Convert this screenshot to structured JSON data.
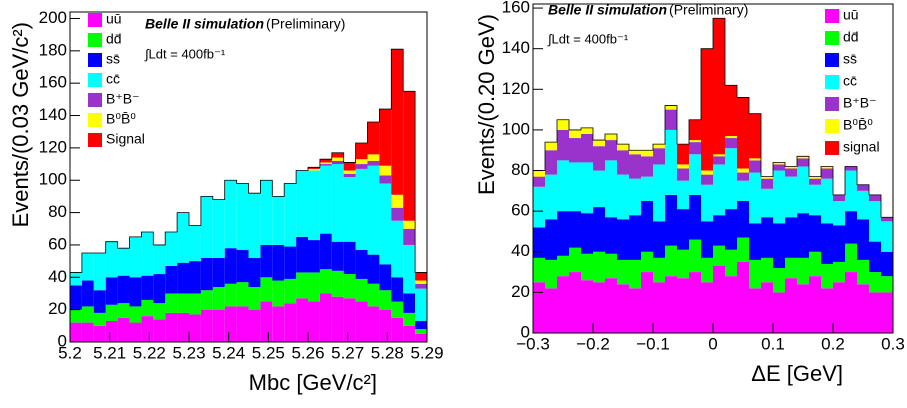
{
  "chart_data": [
    {
      "type": "stacked_histogram",
      "ylabel": "Events/(0.03 GeV/c²)",
      "xlabel": "Mbc [GeV/c²]",
      "annotations": [
        "Belle II simulation",
        "(Preliminary)",
        "∫Ldt = 400fb⁻¹"
      ],
      "bins": [
        5.2,
        5.203,
        5.206,
        5.209,
        5.212,
        5.215,
        5.218,
        5.221,
        5.224,
        5.227,
        5.23,
        5.233,
        5.236,
        5.239,
        5.242,
        5.245,
        5.248,
        5.251,
        5.254,
        5.257,
        5.26,
        5.263,
        5.266,
        5.269,
        5.272,
        5.275,
        5.278,
        5.281,
        5.284,
        5.287,
        5.29
      ],
      "xlim": [
        5.2,
        5.29
      ],
      "xticks": [
        5.2,
        5.21,
        5.22,
        5.23,
        5.24,
        5.25,
        5.26,
        5.27,
        5.28,
        5.29
      ],
      "ylim": [
        0,
        204
      ],
      "yticks": [
        0,
        20,
        40,
        60,
        80,
        100,
        120,
        140,
        160,
        180,
        200
      ],
      "series": [
        {
          "name": "uū",
          "color": "#ff00ff",
          "values": [
            12,
            12,
            10,
            13,
            15,
            12,
            16,
            14,
            18,
            18,
            17,
            20,
            20,
            22,
            22,
            20,
            25,
            22,
            24,
            27,
            25,
            30,
            28,
            27,
            25,
            22,
            20,
            15,
            10,
            5
          ]
        },
        {
          "name": "dd̄",
          "color": "#00ff00",
          "values": [
            8,
            10,
            8,
            10,
            9,
            10,
            10,
            10,
            12,
            12,
            13,
            12,
            14,
            14,
            15,
            14,
            15,
            16,
            15,
            16,
            18,
            15,
            16,
            15,
            14,
            14,
            12,
            10,
            8,
            3
          ]
        },
        {
          "name": "ss̄",
          "color": "#0000ff",
          "values": [
            15,
            16,
            14,
            17,
            17,
            18,
            15,
            18,
            17,
            19,
            20,
            20,
            18,
            22,
            20,
            18,
            20,
            22,
            20,
            22,
            20,
            22,
            18,
            20,
            18,
            18,
            16,
            15,
            12,
            5
          ]
        },
        {
          "name": "cc̄",
          "color": "#00ffff",
          "values": [
            8,
            17,
            23,
            22,
            17,
            25,
            27,
            18,
            21,
            31,
            22,
            38,
            36,
            42,
            41,
            40,
            40,
            30,
            39,
            41,
            43,
            42,
            48,
            40,
            50,
            55,
            50,
            35,
            30,
            20
          ]
        },
        {
          "name": "B⁺B⁻",
          "color": "#9933cc",
          "values": [
            0,
            0,
            0,
            0,
            0,
            0,
            0,
            0,
            0,
            0,
            0,
            0,
            0,
            0,
            0,
            0,
            0,
            0,
            0,
            0,
            0,
            1,
            2,
            2,
            3,
            3,
            5,
            8,
            10,
            3
          ]
        },
        {
          "name": "B⁰B̄⁰",
          "color": "#ffff00",
          "values": [
            0,
            0,
            0,
            0,
            0,
            0,
            0,
            0,
            0,
            0,
            0,
            0,
            0,
            0,
            0,
            0,
            0,
            0,
            0,
            0,
            1,
            1,
            2,
            2,
            3,
            4,
            6,
            8,
            5,
            2
          ]
        },
        {
          "name": "Signal",
          "color": "#ff0000",
          "values": [
            0,
            0,
            0,
            0,
            0,
            0,
            0,
            0,
            0,
            0,
            0,
            0,
            0,
            0,
            0,
            0,
            0,
            0,
            0,
            0,
            1,
            2,
            3,
            5,
            10,
            20,
            35,
            90,
            80,
            5
          ]
        }
      ]
    },
    {
      "type": "stacked_histogram",
      "ylabel": "Events/(0.20 GeV)",
      "xlabel": "ΔE [GeV]",
      "annotations": [
        "Belle II simulation",
        "(Preliminary)",
        "∫Ldt = 400fb⁻¹"
      ],
      "bins": [
        -0.3,
        -0.28,
        -0.26,
        -0.24,
        -0.22,
        -0.2,
        -0.18,
        -0.16,
        -0.14,
        -0.12,
        -0.1,
        -0.08,
        -0.06,
        -0.04,
        -0.02,
        0,
        0.02,
        0.04,
        0.06,
        0.08,
        0.1,
        0.12,
        0.14,
        0.16,
        0.18,
        0.2,
        0.22,
        0.24,
        0.26,
        0.28,
        0.3
      ],
      "xlim": [
        -0.3,
        0.3
      ],
      "xticks": [
        {
          "value": -0.3,
          "label": "−0.3"
        },
        {
          "value": -0.2,
          "label": "−0.2"
        },
        {
          "value": -0.1,
          "label": "−0.1"
        },
        0,
        0.1,
        0.2,
        0.3
      ],
      "ylim": [
        0,
        162
      ],
      "yticks": [
        0,
        20,
        40,
        60,
        80,
        100,
        120,
        140,
        160
      ],
      "series": [
        {
          "name": "uū",
          "color": "#ff00ff",
          "values": [
            25,
            22,
            28,
            30,
            26,
            25,
            27,
            24,
            22,
            30,
            25,
            28,
            27,
            30,
            25,
            33,
            28,
            35,
            22,
            25,
            20,
            27,
            24,
            28,
            22,
            25,
            30,
            24,
            20,
            20
          ]
        },
        {
          "name": "dd̄",
          "color": "#00ff00",
          "values": [
            12,
            14,
            10,
            12,
            13,
            15,
            12,
            12,
            14,
            10,
            12,
            15,
            14,
            16,
            12,
            10,
            13,
            12,
            14,
            12,
            12,
            10,
            13,
            12,
            12,
            10,
            14,
            12,
            10,
            8
          ]
        },
        {
          "name": "ss̄",
          "color": "#0000ff",
          "values": [
            15,
            20,
            22,
            18,
            20,
            22,
            18,
            20,
            22,
            25,
            18,
            25,
            20,
            22,
            18,
            15,
            20,
            18,
            18,
            20,
            22,
            20,
            22,
            18,
            20,
            18,
            16,
            20,
            15,
            12
          ]
        },
        {
          "name": "cc̄",
          "color": "#00ffff",
          "values": [
            20,
            22,
            25,
            24,
            25,
            18,
            28,
            22,
            18,
            12,
            28,
            32,
            14,
            20,
            18,
            25,
            30,
            10,
            25,
            14,
            26,
            20,
            23,
            15,
            22,
            12,
            20,
            14,
            20,
            15
          ]
        },
        {
          "name": "B⁺B⁻",
          "color": "#9933cc",
          "values": [
            5,
            12,
            15,
            12,
            14,
            12,
            10,
            12,
            12,
            10,
            8,
            10,
            6,
            6,
            5,
            4,
            5,
            4,
            6,
            5,
            3,
            4,
            4,
            3,
            5,
            3,
            2,
            3,
            3,
            2
          ]
        },
        {
          "name": "B⁰B̄⁰",
          "color": "#ffff00",
          "values": [
            3,
            4,
            5,
            4,
            3,
            3,
            3,
            3,
            2,
            3,
            2,
            2,
            2,
            1,
            2,
            1,
            1,
            2,
            1,
            1,
            1,
            1,
            1,
            1,
            1,
            0,
            0,
            0,
            0,
            0
          ]
        },
        {
          "name": "signal",
          "color": "#ff0000",
          "values": [
            0,
            0,
            0,
            0,
            0,
            0,
            0,
            0,
            0,
            0,
            0,
            0,
            10,
            10,
            60,
            67,
            25,
            35,
            22,
            0,
            0,
            0,
            0,
            0,
            0,
            0,
            0,
            0,
            0,
            0
          ]
        }
      ]
    }
  ]
}
